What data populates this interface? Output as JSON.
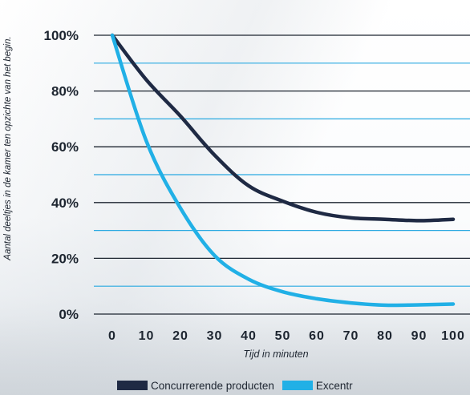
{
  "chart_data": {
    "type": "line",
    "title": "",
    "xlabel": "Tijd in minuten",
    "ylabel": "Aantal deeltjes in de kamer ten opzichte van het begin.",
    "x": [
      0,
      10,
      20,
      30,
      40,
      50,
      60,
      70,
      80,
      90,
      100
    ],
    "xlim": [
      0,
      100
    ],
    "ylim": [
      0,
      100
    ],
    "x_ticks": [
      "0",
      "10",
      "20",
      "30",
      "40",
      "50",
      "60",
      "70",
      "80",
      "90",
      "100"
    ],
    "y_ticks": [
      "0%",
      "20%",
      "40%",
      "60%",
      "80%",
      "100%"
    ],
    "grid": "horizontal",
    "legend_position": "bottom",
    "series": [
      {
        "name": "Concurrerende producten",
        "color": "#1f2a44",
        "values": [
          100,
          84,
          71,
          57,
          46,
          40.5,
          36.5,
          34.5,
          34,
          33.5,
          34
        ]
      },
      {
        "name": "Excentr",
        "color": "#21b0e6",
        "values": [
          100,
          62,
          38,
          21,
          12.5,
          8,
          5.5,
          4,
          3.2,
          3.3,
          3.6
        ]
      }
    ]
  }
}
